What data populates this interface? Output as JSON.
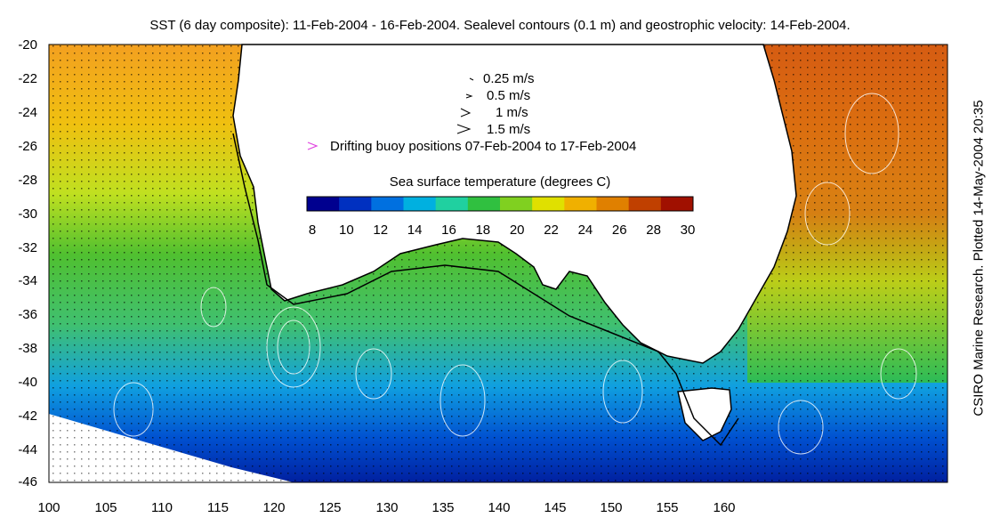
{
  "title": "SST (6 day composite): 11-Feb-2004 - 16-Feb-2004. Sealevel contours (0.1 m) and geostrophic velocity: 14-Feb-2004.",
  "side_label": "CSIRO Marine Research. Plotted 14-May-2004 20:35",
  "axes": {
    "x_ticks": [
      "100",
      "105",
      "110",
      "115",
      "120",
      "125",
      "130",
      "135",
      "140",
      "145",
      "150",
      "155",
      "160"
    ],
    "y_ticks": [
      "-20",
      "-22",
      "-24",
      "-26",
      "-28",
      "-30",
      "-32",
      "-34",
      "-36",
      "-38",
      "-40",
      "-42",
      "-44",
      "-46"
    ]
  },
  "legend": {
    "speeds": [
      "0.25 m/s",
      "0.5 m/s",
      "1 m/s",
      "1.5 m/s"
    ],
    "buoy": "Drifting buoy positions 07-Feb-2004 to 17-Feb-2004",
    "buoy_color": "#e040e0"
  },
  "colorbar": {
    "label": "Sea surface temperature (degrees C)",
    "ticks": [
      "8",
      "10",
      "12",
      "14",
      "16",
      "18",
      "20",
      "22",
      "24",
      "26",
      "28",
      "30"
    ],
    "colors": [
      "#00008f",
      "#0030c0",
      "#0070e0",
      "#00b0e0",
      "#20d0a0",
      "#30c040",
      "#80d020",
      "#e0e000",
      "#f0b000",
      "#e08000",
      "#c04000",
      "#a01000"
    ]
  },
  "colors": {
    "land": "#ffffff",
    "coastline": "#000000",
    "contours": "#ffffff"
  }
}
